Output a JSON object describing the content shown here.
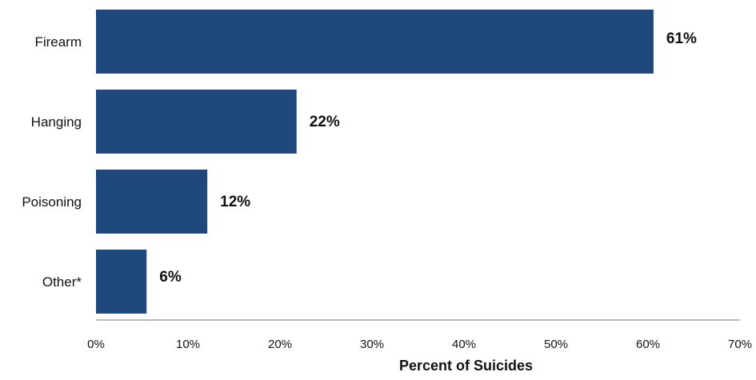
{
  "chart_data": {
    "type": "bar",
    "orientation": "horizontal",
    "categories": [
      "Firearm",
      "Hanging",
      "Poisoning",
      "Other*"
    ],
    "values": [
      61,
      22,
      12,
      6
    ],
    "bar_value_estimates": [
      60.6,
      21.8,
      12.1,
      5.5
    ],
    "data_labels": [
      "61%",
      "22%",
      "12%",
      "6%"
    ],
    "xlabel": "Percent of Suicides",
    "xlim": [
      0,
      70
    ],
    "x_ticks": [
      "0%",
      "10%",
      "20%",
      "30%",
      "40%",
      "50%",
      "60%",
      "70%"
    ],
    "x_tick_values": [
      0,
      10,
      20,
      30,
      40,
      50,
      60,
      70
    ],
    "grid": false,
    "legend": "none",
    "bar_color": "#1f497d",
    "axis_color": "#a6a6a6"
  }
}
